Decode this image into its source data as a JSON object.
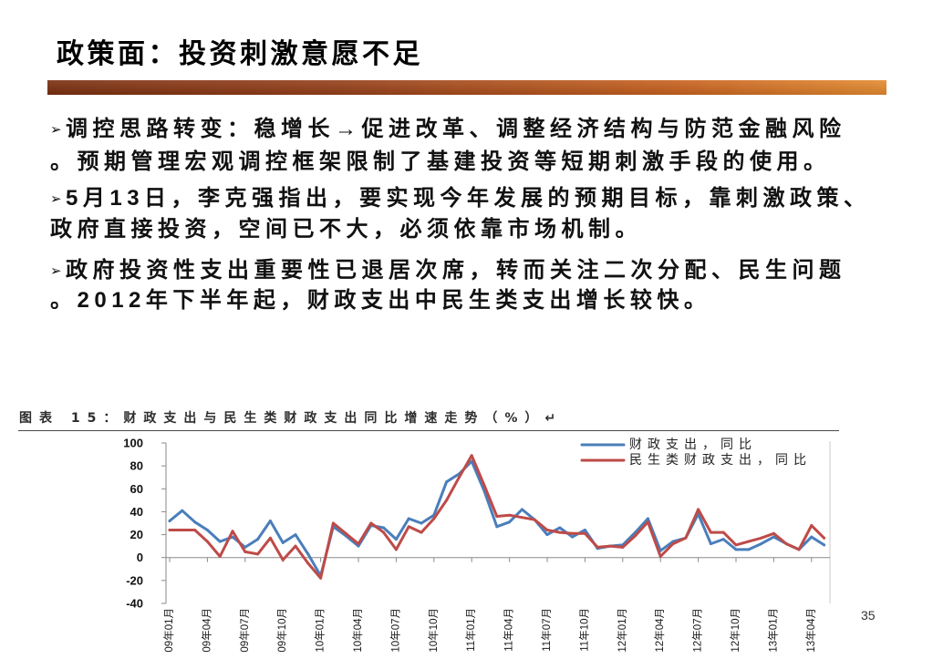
{
  "slide": {
    "title": "政策面：投资刺激意愿不足",
    "bullet_symbol": "➢",
    "bullets": [
      {
        "lines": [
          "调控思路转变：稳增长→促进改革、调整经济结构与防范金融风险",
          "。预期管理宏观调控框架限制了基建投资等短期刺激手段的使用。"
        ]
      },
      {
        "lines": [
          "5月13日，李克强指出，要实现今年发展的预期目标，靠刺激政策、",
          "政府直接投资，空间已不大，必须依靠市场机制。"
        ]
      },
      {
        "lines": [
          "政府投资性支出重要性已退居次席，转而关注二次分配、民生问题",
          "。2012年下半年起，财政支出中民生类支出增长较快。"
        ]
      }
    ],
    "page_number": "35"
  },
  "chart_data": {
    "type": "line",
    "title": "图表 15：财政支出与民生类财政支出同比增速走势（%）↵",
    "ylim": [
      -40,
      100
    ],
    "y_ticks": [
      100,
      80,
      60,
      40,
      20,
      0,
      -20,
      -40
    ],
    "x_tick_labels": [
      "09年01月",
      "09年04月",
      "09年07月",
      "09年10月",
      "10年01月",
      "10年04月",
      "10年07月",
      "10年10月",
      "11年01月",
      "11年04月",
      "11年07月",
      "11年10月",
      "12年01月",
      "12年04月",
      "12年07月",
      "12年10月",
      "13年01月",
      "13年04月"
    ],
    "series": [
      {
        "name": "财政支出，同比",
        "color": "#4a7ebb",
        "values": [
          32,
          41,
          31,
          24,
          14,
          18,
          9,
          16,
          32,
          13,
          20,
          3,
          -16,
          27,
          19,
          10,
          28,
          26,
          16,
          34,
          30,
          37,
          66,
          73,
          84,
          58,
          27,
          31,
          42,
          33,
          20,
          26,
          18,
          24,
          8,
          10,
          11,
          22,
          34,
          6,
          14,
          17,
          38,
          12,
          16,
          7,
          7,
          12,
          18,
          12,
          7,
          18,
          11
        ]
      },
      {
        "name": "民生类财政支出，同比",
        "color": "#be4b48",
        "values": [
          24,
          24,
          24,
          14,
          1,
          23,
          5,
          3,
          17,
          -2,
          10,
          -5,
          -18,
          30,
          21,
          12,
          30,
          22,
          7,
          27,
          22,
          34,
          50,
          70,
          89,
          63,
          36,
          37,
          35,
          33,
          24,
          22,
          21,
          21,
          9,
          10,
          9,
          19,
          31,
          1,
          12,
          17,
          42,
          22,
          22,
          11,
          14,
          17,
          21,
          12,
          7,
          28,
          17
        ]
      }
    ],
    "legend": "top-right",
    "grid": false
  }
}
